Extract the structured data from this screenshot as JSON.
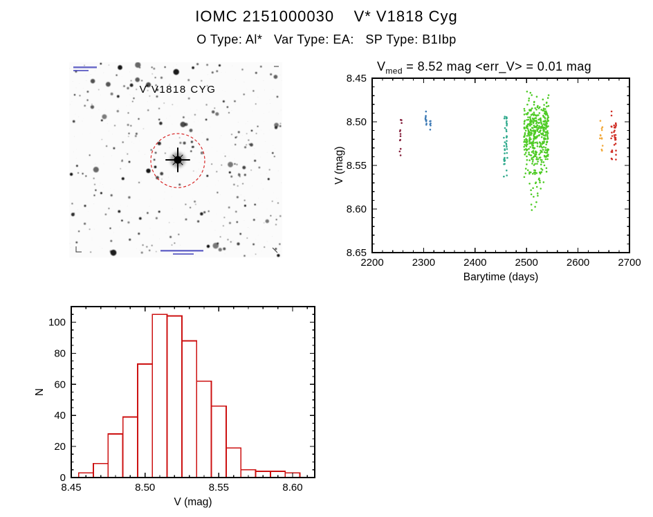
{
  "page": {
    "title": "IOMC 2151000030    V* V1818 Cyg",
    "subtitle": "O Type: Al*   Var Type: EA:   SP Type: B1Ibp"
  },
  "finding_chart": {
    "target_label": "V V1818 CYG",
    "circle_color": "#d82828",
    "annotation_color": "#3b3bb8",
    "description": "Inverted grayscale star field; dashed red circle marks the target star at center"
  },
  "chart_data": [
    {
      "id": "lightcurve",
      "type": "scatter",
      "title": {
        "prefix": "V",
        "sub": "med",
        "rest": " = 8.52 mag <err_V> = 0.01 mag"
      },
      "xlabel": "Barytime (days)",
      "ylabel": "V (mag)",
      "xlim": [
        2200,
        2700
      ],
      "ylim": [
        8.45,
        8.65
      ],
      "y_inverted": true,
      "xticks": [
        2200,
        2300,
        2400,
        2500,
        2600,
        2700
      ],
      "yticks": [
        8.45,
        8.5,
        8.55,
        8.6,
        8.65
      ],
      "x_minor": 20,
      "y_minor": 0.01,
      "grid": false,
      "clusters": [
        {
          "name": "epoch-1-darkred",
          "color": "#84203c",
          "columns": [
            2254.5,
            2257.5
          ],
          "x_min": 2253,
          "x_max": 2259,
          "v_mean": 8.52,
          "v_sigma": 0.015,
          "v_min": 8.495,
          "v_max": 8.54,
          "count": 12
        },
        {
          "name": "epoch-2-blue",
          "color": "#3d7ab5",
          "columns": [
            2304.5,
            2313.0
          ],
          "x_min": 2303,
          "x_max": 2316,
          "v_mean": 8.5,
          "v_sigma": 0.008,
          "v_min": 8.487,
          "v_max": 8.514,
          "count": 16
        },
        {
          "name": "epoch-3-teal",
          "color": "#2fa98c",
          "columns": [
            2457.0,
            2461.5
          ],
          "x_min": 2455,
          "x_max": 2464,
          "v_mean": 8.528,
          "v_sigma": 0.022,
          "v_min": 8.492,
          "v_max": 8.565,
          "count": 42
        },
        {
          "name": "epoch-4-green-main",
          "color": "#4ecb25",
          "columns": null,
          "x_min": 2495,
          "x_max": 2543,
          "v_mean": 8.515,
          "v_sigma": 0.02,
          "v_min": 8.46,
          "v_max": 8.57,
          "count": 420
        },
        {
          "name": "epoch-4-green-eclipse-tail",
          "color": "#4ecb25",
          "columns": null,
          "x_min": 2505,
          "x_max": 2530,
          "v_mean": 8.578,
          "v_sigma": 0.013,
          "v_min": 8.555,
          "v_max": 8.603,
          "count": 26
        },
        {
          "name": "epoch-5-orange",
          "color": "#f2a93b",
          "columns": [
            2643.5,
            2647.0
          ],
          "x_min": 2642,
          "x_max": 2649,
          "v_mean": 8.515,
          "v_sigma": 0.01,
          "v_min": 8.497,
          "v_max": 8.535,
          "count": 12
        },
        {
          "name": "epoch-6-red",
          "color": "#cf2d24",
          "columns": [
            2665.5,
            2670.5,
            2673.0
          ],
          "x_min": 2663,
          "x_max": 2675,
          "v_mean": 8.515,
          "v_sigma": 0.016,
          "v_min": 8.488,
          "v_max": 8.545,
          "count": 34
        }
      ]
    },
    {
      "id": "histogram",
      "type": "bar",
      "title": "",
      "xlabel": "V (mag)",
      "ylabel": "N",
      "xlim": [
        8.45,
        8.615
      ],
      "ylim": [
        0,
        110
      ],
      "xticks": [
        8.45,
        8.5,
        8.55,
        8.6
      ],
      "yticks": [
        0,
        20,
        40,
        60,
        80,
        100
      ],
      "x_minor": 0.01,
      "y_minor": 5,
      "grid": false,
      "bin_start": 8.455,
      "bin_width": 0.01,
      "counts": [
        3,
        9,
        28,
        39,
        73,
        105,
        104,
        88,
        62,
        46,
        19,
        5,
        4,
        4,
        3
      ],
      "color": "#cc1111",
      "fill": "#ffffff"
    }
  ]
}
